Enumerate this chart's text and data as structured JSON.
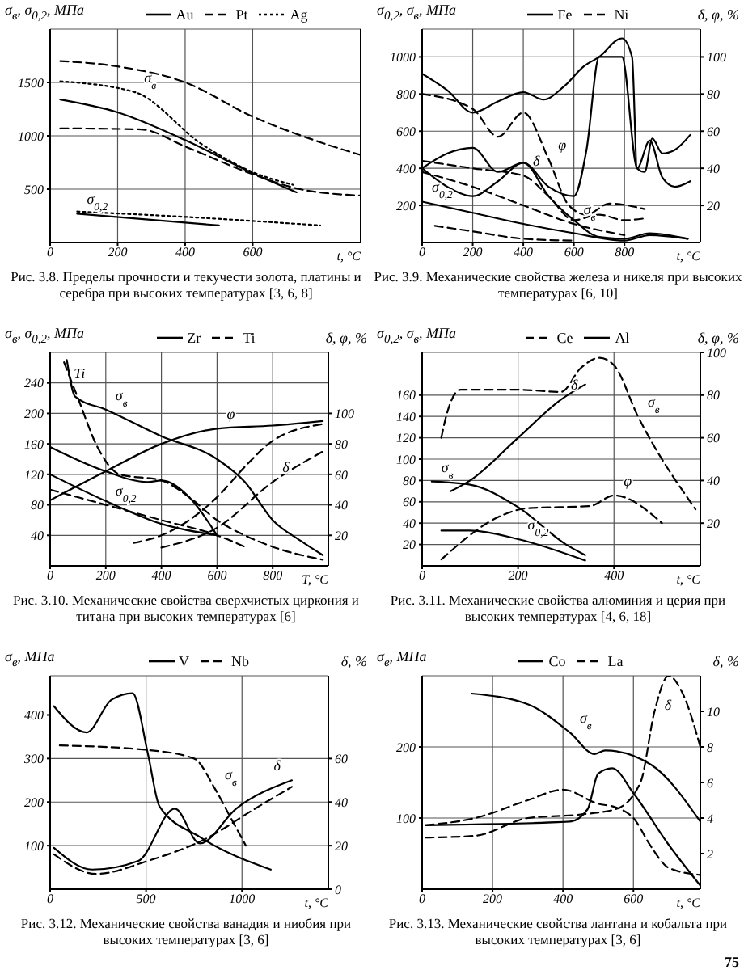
{
  "chart_data": [
    {
      "type": "line",
      "title": "Рис. 3.8. Пределы прочности и текучести золота, платины и серебра при высоких температурах [3, 6, 8]",
      "xlabel": "t, °C",
      "ylabel": "σ$_{в}$, σ$_{0,2}$, МПа",
      "xlim": [
        0,
        920
      ],
      "xticks": [
        0,
        200,
        400,
        600
      ],
      "ylim": [
        0,
        2000
      ],
      "yticks": [
        500,
        1000,
        1500
      ],
      "grid": true,
      "legend": "top",
      "marker": "none",
      "series": [
        {
          "name": "Au",
          "color": "#000000",
          "line_style": "solid",
          "x": [
            30,
            200,
            400,
            600,
            730
          ],
          "values": [
            1340,
            1220,
            960,
            650,
            470
          ]
        },
        {
          "name": "Pt",
          "color": "#000000",
          "line_style": "dashed",
          "x": [
            30,
            200,
            400,
            600,
            800,
            920
          ],
          "values": [
            1700,
            1650,
            1500,
            1180,
            940,
            820
          ]
        },
        {
          "name": "Ag",
          "color": "#000000",
          "line_style": "dotted",
          "x": [
            30,
            250,
            450,
            600,
            720
          ],
          "values": [
            1510,
            1410,
            920,
            660,
            540
          ]
        },
        {
          "color": "#000000",
          "line_style": "dashed",
          "x": [
            30,
            270,
            400,
            600,
            740,
            920
          ],
          "values": [
            1070,
            1060,
            900,
            640,
            500,
            440
          ]
        },
        {
          "color": "#000000",
          "line_style": "solid",
          "x": [
            80,
            500
          ],
          "values": [
            270,
            160
          ]
        },
        {
          "color": "#000000",
          "line_style": "dotted",
          "x": [
            80,
            400,
            800
          ],
          "values": [
            290,
            240,
            160
          ]
        }
      ],
      "annotations": [
        {
          "text": "σ$_{в}$",
          "x": 250,
          "y": 1410
        },
        {
          "text": "σ$_{0,2}$",
          "x": 80,
          "y": 270
        }
      ]
    },
    {
      "type": "line",
      "title": "Рис. 3.9. Механические свойства железа и никеля при высоких температурах [6, 10]",
      "xlabel": "t, °C",
      "ylabel": "σ$_{0,2}$, σ$_{в}$, МПа",
      "y2label": "δ, φ, %",
      "xlim": [
        0,
        1100
      ],
      "xticks": [
        0,
        200,
        400,
        600,
        800
      ],
      "ylim": [
        0,
        1150
      ],
      "yticks": [
        200,
        400,
        600,
        800,
        1000
      ],
      "y2lim": [
        0,
        115
      ],
      "y2ticks": [
        20,
        40,
        60,
        80,
        100
      ],
      "grid": true,
      "legend": "top",
      "marker": "none",
      "series": [
        {
          "name": "Fe",
          "color": "#000000",
          "line_style": "solid",
          "axis": "y2",
          "x": [
            0,
            100,
            200,
            300,
            400,
            480,
            560,
            640,
            700,
            790,
            830,
            850,
            900,
            950,
            1000,
            1060
          ],
          "values": [
            91,
            82,
            70,
            76,
            81,
            77,
            84,
            95,
            100,
            110,
            100,
            40,
            55,
            35,
            30,
            33
          ]
        },
        {
          "color": "#000000",
          "line_style": "solid",
          "axis": "y2",
          "x": [
            0,
            100,
            200,
            300,
            400,
            500,
            600,
            650,
            700,
            790,
            850,
            880,
            910,
            950,
            1000,
            1060
          ],
          "values": [
            40,
            48,
            51,
            38,
            43,
            30,
            25,
            50,
            100,
            100,
            40,
            38,
            56,
            48,
            50,
            58
          ]
        },
        {
          "color": "#000000",
          "line_style": "solid",
          "x": [
            0,
            100,
            200,
            300,
            400,
            500,
            600,
            700,
            800,
            900,
            1050
          ],
          "values": [
            400,
            300,
            250,
            330,
            430,
            250,
            120,
            30,
            20,
            50,
            20
          ]
        },
        {
          "color": "#000000",
          "line_style": "solid",
          "x": [
            0,
            200,
            400,
            600,
            800,
            900,
            1050
          ],
          "values": [
            220,
            160,
            100,
            50,
            10,
            40,
            20
          ]
        },
        {
          "name": "Ni",
          "color": "#000000",
          "line_style": "dashed",
          "axis": "y2",
          "x": [
            0,
            200,
            300,
            400,
            500,
            580,
            650,
            740,
            880
          ],
          "values": [
            80,
            72,
            57,
            70,
            45,
            20,
            15,
            21,
            18
          ]
        },
        {
          "color": "#000000",
          "line_style": "dashed",
          "axis": "y2",
          "x": [
            0,
            200,
            400,
            500,
            600,
            700,
            800,
            880
          ],
          "values": [
            44,
            40,
            36,
            25,
            12,
            15,
            12,
            13
          ]
        },
        {
          "color": "#000000",
          "line_style": "dashed",
          "x": [
            0,
            200,
            400,
            600,
            800
          ],
          "values": [
            380,
            300,
            200,
            100,
            40
          ]
        },
        {
          "color": "#000000",
          "line_style": "dashed",
          "x": [
            50,
            200,
            400,
            600
          ],
          "values": [
            90,
            60,
            20,
            10
          ]
        }
      ],
      "annotations": [
        {
          "text": "φ",
          "x": 500,
          "y": 450
        },
        {
          "text": "δ",
          "x": 400,
          "y": 360
        },
        {
          "text": "σ$_{в}$",
          "x": 600,
          "y": 100
        },
        {
          "text": "σ$_{0,2}$",
          "x": 0,
          "y": 220
        }
      ]
    },
    {
      "type": "line",
      "title": "Рис. 3.10. Механические свойства сверхчистых циркония и титана при высоких температурах [6]",
      "xlabel": "T, °C",
      "ylabel": "σ$_{в}$, σ$_{0,2}$, МПа",
      "y2label": "δ, φ, %",
      "xlim": [
        0,
        1000
      ],
      "xticks": [
        0,
        200,
        400,
        600,
        800
      ],
      "ylim": [
        0,
        280
      ],
      "yticks": [
        40,
        80,
        120,
        160,
        200,
        240
      ],
      "y2lim": [
        0,
        140
      ],
      "y2ticks": [
        20,
        40,
        60,
        80,
        100
      ],
      "grid": true,
      "legend": "top",
      "marker": "none",
      "series": [
        {
          "name": "Zr",
          "color": "#000000",
          "line_style": "solid",
          "x": [
            60,
            90,
            200,
            400,
            600,
            700,
            800,
            900,
            980
          ],
          "values": [
            270,
            222,
            205,
            170,
            140,
            110,
            60,
            33,
            14
          ]
        },
        {
          "name": "Ti",
          "color": "#000000",
          "line_style": "dashed",
          "x": [
            50,
            100,
            170,
            250,
            400,
            500,
            600,
            700,
            800,
            980
          ],
          "values": [
            267,
            220,
            156,
            120,
            112,
            90,
            60,
            40,
            25,
            8
          ]
        },
        {
          "color": "#000000",
          "line_style": "solid",
          "x": [
            0,
            200,
            400,
            600
          ],
          "values": [
            120,
            85,
            55,
            40
          ]
        },
        {
          "color": "#000000",
          "line_style": "dashed",
          "x": [
            0,
            200,
            400,
            600,
            700
          ],
          "values": [
            100,
            80,
            60,
            40,
            25
          ]
        },
        {
          "color": "#000000",
          "line_style": "solid",
          "axis": "y2",
          "x": [
            0,
            200,
            400,
            600,
            800,
            980
          ],
          "values": [
            43,
            62,
            80,
            90,
            92,
            95
          ]
        },
        {
          "color": "#000000",
          "line_style": "solid",
          "axis": "y2",
          "x": [
            0,
            200,
            350,
            400,
            500,
            600
          ],
          "values": [
            78,
            62,
            55,
            56,
            45,
            20
          ]
        },
        {
          "color": "#000000",
          "line_style": "dashed",
          "axis": "y2",
          "x": [
            300,
            400,
            500,
            600,
            700,
            800,
            980
          ],
          "values": [
            15,
            20,
            30,
            45,
            65,
            82,
            93
          ]
        },
        {
          "color": "#000000",
          "line_style": "dashed",
          "axis": "y2",
          "x": [
            400,
            600,
            800,
            980
          ],
          "values": [
            12,
            25,
            55,
            75
          ]
        }
      ],
      "annotations": [
        {
          "text": "Ti",
          "x": 50,
          "y": 267
        },
        {
          "text": "σ$_{в}$",
          "x": 200,
          "y": 205
        },
        {
          "text": "σ$_{0,2}$",
          "x": 200,
          "y": 80
        },
        {
          "text": "φ",
          "x": 600,
          "y": 180
        },
        {
          "text": "δ",
          "x": 800,
          "y": 110
        }
      ]
    },
    {
      "type": "line",
      "title": "Рис. 3.11. Механические свойства алюминия и церия при высоких температурах [4, 6, 18]",
      "xlabel": "t, °C",
      "ylabel": "σ$_{0,2}$, σ$_{в}$, МПа",
      "y2label": "δ, φ, %",
      "xlim": [
        0,
        580
      ],
      "xticks": [
        0,
        200,
        400
      ],
      "ylim": [
        0,
        200
      ],
      "yticks": [
        20,
        40,
        60,
        80,
        100,
        120,
        140,
        160
      ],
      "y2lim": [
        0,
        100
      ],
      "y2ticks": [
        20,
        40,
        60,
        80,
        100
      ],
      "grid": true,
      "legend": "top",
      "marker": "none",
      "series": [
        {
          "name": "Ce",
          "color": "#000000",
          "line_style": "dashed",
          "x": [
            40,
            50,
            80,
            200,
            290,
            330,
            370,
            400,
            450,
            570
          ],
          "values": [
            120,
            140,
            165,
            165,
            163,
            185,
            195,
            188,
            140,
            53
          ]
        },
        {
          "name": "Al",
          "color": "#000000",
          "line_style": "solid",
          "axis": "y2",
          "x": [
            60,
            100,
            200,
            290,
            340
          ],
          "values": [
            35,
            40,
            60,
            78,
            85
          ]
        },
        {
          "color": "#000000",
          "line_style": "solid",
          "x": [
            20,
            100,
            200,
            300,
            340
          ],
          "values": [
            79,
            76,
            55,
            20,
            10
          ]
        },
        {
          "color": "#000000",
          "line_style": "solid",
          "x": [
            40,
            100,
            200,
            340
          ],
          "values": [
            33,
            33,
            25,
            5
          ]
        },
        {
          "color": "#000000",
          "line_style": "dashed",
          "axis": "y2",
          "x": [
            40,
            170,
            220,
            350,
            400,
            500
          ],
          "values": [
            3,
            24,
            27,
            28,
            33,
            20
          ]
        }
      ],
      "annotations": [
        {
          "text": "δ",
          "x": 290,
          "y": 156
        },
        {
          "text": "σ$_{в}$",
          "x": 450,
          "y": 140
        },
        {
          "text": "σ$_{в}$",
          "x": 20,
          "y": 79
        },
        {
          "text": "φ",
          "x": 400,
          "y": 66
        },
        {
          "text": "σ$_{0,2}$",
          "x": 200,
          "y": 25
        }
      ]
    },
    {
      "type": "line",
      "title": "Рис. 3.12. Механические свойства ванадия и ниобия при высоких температурах [3, 6]",
      "xlabel": "t, °C",
      "ylabel": "σ$_{в}$, МПа",
      "y2label": "δ, %",
      "xlim": [
        0,
        1450
      ],
      "xticks": [
        0,
        500,
        1000
      ],
      "ylim": [
        0,
        490
      ],
      "yticks": [
        100,
        200,
        300,
        400
      ],
      "y2lim": [
        0,
        98
      ],
      "y2ticks": [
        0,
        20,
        40,
        60
      ],
      "grid": true,
      "legend": "top",
      "marker": "none",
      "series": [
        {
          "name": "V",
          "color": "#000000",
          "line_style": "solid",
          "x": [
            20,
            190,
            320,
            430,
            510,
            570,
            780,
            1150
          ],
          "values": [
            420,
            360,
            435,
            450,
            310,
            190,
            120,
            45
          ]
        },
        {
          "name": "Nb",
          "color": "#000000",
          "line_style": "dashed",
          "x": [
            50,
            500,
            750,
            860,
            940,
            1020
          ],
          "values": [
            330,
            320,
            300,
            230,
            165,
            100
          ]
        },
        {
          "color": "#000000",
          "line_style": "solid",
          "axis": "y2",
          "x": [
            20,
            220,
            460,
            650,
            780,
            970,
            1260
          ],
          "values": [
            19,
            9,
            13,
            37,
            21,
            37,
            50
          ]
        },
        {
          "color": "#000000",
          "line_style": "dashed",
          "axis": "y2",
          "x": [
            20,
            240,
            510,
            830,
            1050,
            1260
          ],
          "values": [
            16,
            7,
            13,
            24,
            36,
            47
          ]
        }
      ],
      "annotations": [
        {
          "text": "σ$_{в}$",
          "x": 860,
          "y": 230
        },
        {
          "text": "δ",
          "x": 1260,
          "y": 250
        }
      ]
    },
    {
      "type": "line",
      "title": "Рис. 3.13. Механические свойства лантана и кобальта при высоких температурах [3, 6]",
      "xlabel": "t, °C",
      "ylabel": "σ$_{в}$, МПа",
      "y2label": "δ, %",
      "xlim": [
        0,
        790
      ],
      "xticks": [
        0,
        200,
        400,
        600
      ],
      "ylim": [
        0,
        300
      ],
      "yticks": [
        100,
        200
      ],
      "y2lim": [
        0,
        12
      ],
      "y2ticks": [
        2,
        4,
        6,
        8,
        10
      ],
      "grid": true,
      "legend": "top",
      "marker": "none",
      "series": [
        {
          "name": "Co",
          "color": "#000000",
          "line_style": "solid",
          "x": [
            140,
            300,
            420,
            490,
            520,
            650,
            790
          ],
          "values": [
            275,
            260,
            220,
            190,
            195,
            175,
            95
          ]
        },
        {
          "name": "La",
          "color": "#000000",
          "line_style": "dashed",
          "x": [
            10,
            150,
            300,
            400,
            500,
            550,
            600,
            650,
            700,
            790
          ],
          "values": [
            90,
            100,
            125,
            140,
            120,
            115,
            100,
            60,
            30,
            20
          ]
        },
        {
          "color": "#000000",
          "line_style": "solid",
          "axis": "y2",
          "x": [
            10,
            420,
            470,
            500,
            540,
            600,
            700,
            790
          ],
          "values": [
            3.6,
            3.8,
            4.5,
            6.5,
            6.8,
            5.4,
            2.5,
            0.2
          ]
        },
        {
          "color": "#000000",
          "line_style": "dashed",
          "axis": "y2",
          "x": [
            10,
            150,
            300,
            450,
            550,
            620,
            660,
            700,
            740,
            790
          ],
          "values": [
            2.9,
            3,
            4,
            4.2,
            4.5,
            6,
            10,
            12,
            11,
            8
          ]
        }
      ],
      "annotations": [
        {
          "text": "σ$_{в}$",
          "x": 420,
          "y": 220
        },
        {
          "text": "δ",
          "x": 740,
          "y": 275
        },
        "75"
      ]
    }
  ]
}
